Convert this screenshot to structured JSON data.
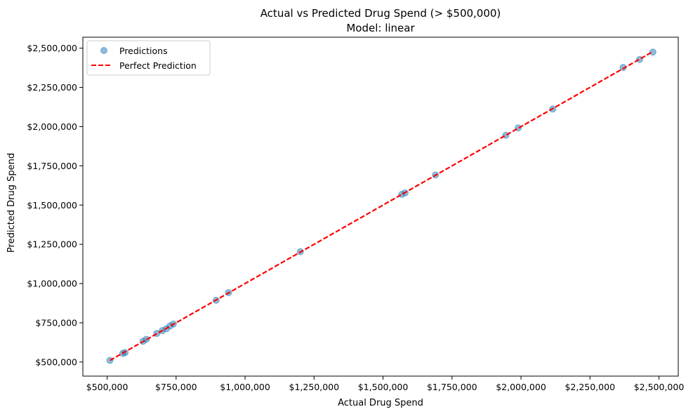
{
  "chart_data": {
    "type": "scatter",
    "title": "Actual vs Predicted Drug Spend (> $500,000)",
    "subtitle": "Model: linear",
    "xlabel": "Actual Drug Spend",
    "ylabel": "Predicted Drug Spend",
    "xlim": [
      412000,
      2570000
    ],
    "ylim": [
      410000,
      2570000
    ],
    "x_ticks": [
      500000,
      750000,
      1000000,
      1250000,
      1500000,
      1750000,
      2000000,
      2250000,
      2500000
    ],
    "x_tick_labels": [
      "$500,000",
      "$750,000",
      "$1,000,000",
      "$1,250,000",
      "$1,500,000",
      "$1,750,000",
      "$2,000,000",
      "$2,250,000",
      "$2,500,000"
    ],
    "y_ticks": [
      500000,
      750000,
      1000000,
      1250000,
      1500000,
      1750000,
      2000000,
      2250000,
      2500000
    ],
    "y_tick_labels": [
      "$500,000",
      "$750,000",
      "$1,000,000",
      "$1,250,000",
      "$1,500,000",
      "$1,750,000",
      "$2,000,000",
      "$2,250,000",
      "$2,500,000"
    ],
    "grid": false,
    "legend_position": "top-left",
    "series": [
      {
        "name": "Predictions",
        "kind": "scatter",
        "color": "#1f77b4",
        "points": [
          {
            "x": 510000,
            "y": 510000
          },
          {
            "x": 557000,
            "y": 555000
          },
          {
            "x": 565000,
            "y": 560000
          },
          {
            "x": 630000,
            "y": 632000
          },
          {
            "x": 642000,
            "y": 645000
          },
          {
            "x": 680000,
            "y": 682000
          },
          {
            "x": 700000,
            "y": 700000
          },
          {
            "x": 715000,
            "y": 712000
          },
          {
            "x": 728000,
            "y": 730000
          },
          {
            "x": 740000,
            "y": 742000
          },
          {
            "x": 895000,
            "y": 893000
          },
          {
            "x": 940000,
            "y": 942000
          },
          {
            "x": 1200000,
            "y": 1203000
          },
          {
            "x": 1568000,
            "y": 1568000
          },
          {
            "x": 1580000,
            "y": 1578000
          },
          {
            "x": 1690000,
            "y": 1692000
          },
          {
            "x": 1945000,
            "y": 1945000
          },
          {
            "x": 1990000,
            "y": 1992000
          },
          {
            "x": 2115000,
            "y": 2112000
          },
          {
            "x": 2370000,
            "y": 2377000
          },
          {
            "x": 2430000,
            "y": 2428000
          },
          {
            "x": 2478000,
            "y": 2475000
          }
        ]
      },
      {
        "name": "Perfect Prediction",
        "kind": "line",
        "style": "dashed",
        "color": "#ff0000",
        "points": [
          {
            "x": 510000,
            "y": 510000
          },
          {
            "x": 2478000,
            "y": 2478000
          }
        ]
      }
    ]
  }
}
